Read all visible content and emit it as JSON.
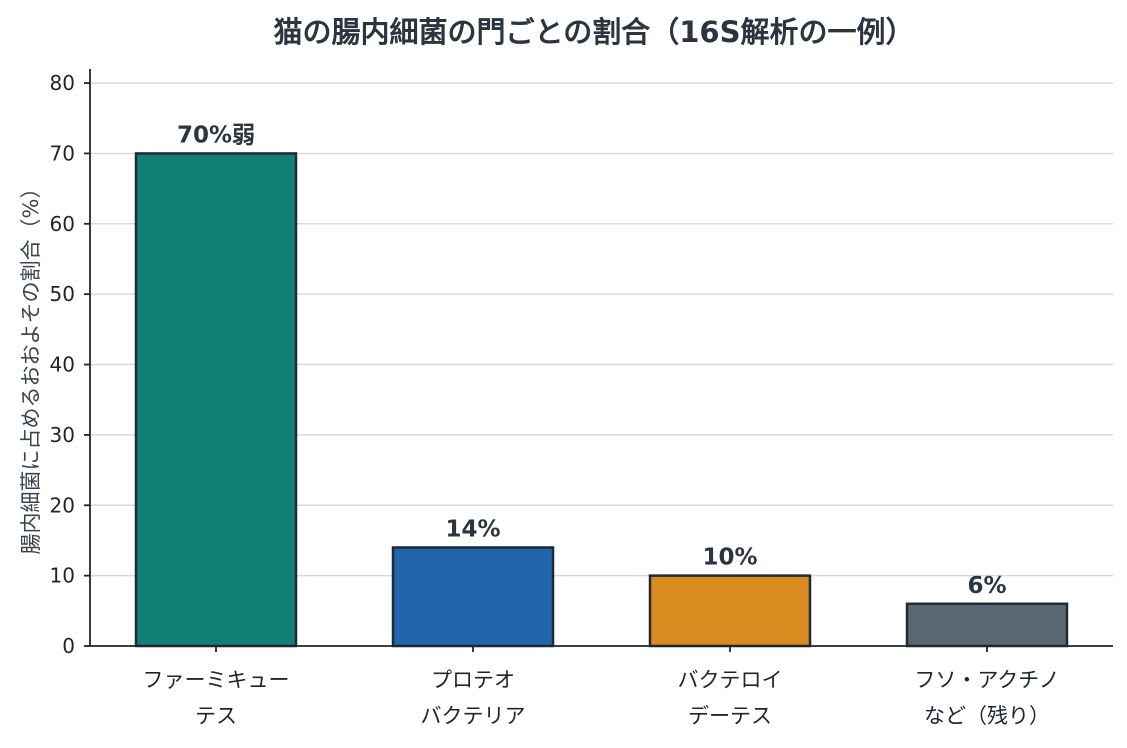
{
  "chart_data": {
    "type": "bar",
    "title": "猫の腸内細菌の門ごとの割合（16S解析の一例）",
    "xlabel": "",
    "ylabel": "腸内細菌に占めるおおよその割合（%）",
    "ylim": [
      0,
      82
    ],
    "yticks": [
      0,
      10,
      20,
      30,
      40,
      50,
      60,
      70,
      80
    ],
    "grid": true,
    "categories": [
      [
        "ファーミキュー",
        "テス"
      ],
      [
        "プロテオ",
        "バクテリア"
      ],
      [
        "バクテロイ",
        "デーテス"
      ],
      [
        "フソ・アクチノ",
        "など（残り）"
      ]
    ],
    "values": [
      70,
      14,
      10,
      6
    ],
    "data_labels": [
      "70%弱",
      "14%",
      "10%",
      "6%"
    ],
    "colors": [
      "#117f76",
      "#2166ac",
      "#d98b20",
      "#5b6770"
    ]
  }
}
